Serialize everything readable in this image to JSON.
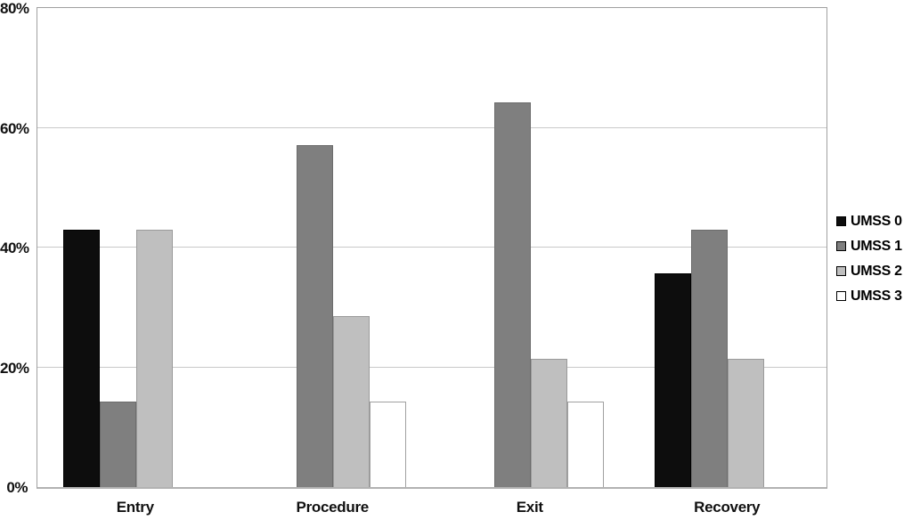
{
  "chart_data": {
    "type": "bar",
    "title": "",
    "xlabel": "",
    "ylabel": "",
    "categories": [
      "Entry",
      "Procedure",
      "Exit",
      "Recovery"
    ],
    "series": [
      {
        "name": "UMSS 0",
        "color": "#0d0d0d",
        "border_color": "#000000",
        "values": [
          42.9,
          0,
          0,
          35.7
        ]
      },
      {
        "name": "UMSS 1",
        "color": "#7f7f7f",
        "border_color": "#6b6b6b",
        "values": [
          14.3,
          57.1,
          64.3,
          42.9
        ]
      },
      {
        "name": "UMSS 2",
        "color": "#bfbfbf",
        "border_color": "#9a9a9a",
        "values": [
          42.9,
          28.6,
          21.4,
          21.4
        ]
      },
      {
        "name": "UMSS 3",
        "color": "#ffffff",
        "border_color": "#a0a0a0",
        "values": [
          0,
          14.3,
          14.3,
          0
        ]
      }
    ],
    "ylim": [
      0,
      80
    ],
    "ytick_step": 20,
    "ytick_labels": [
      "0%",
      "20%",
      "40%",
      "60%",
      "80%"
    ],
    "grid": true,
    "legend_position": "right",
    "plot_border_color": "#a0a0a0",
    "gridline_color": "#c9c9c9",
    "text_color": "#111111"
  }
}
